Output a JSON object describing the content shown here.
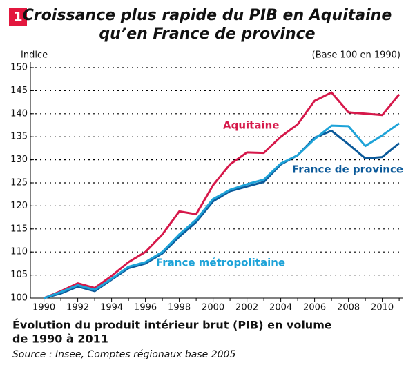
{
  "chart_data": {
    "type": "line",
    "badge": "1",
    "title": [
      "Croissance plus rapide du PIB en Aquitaine",
      "qu’en France de province"
    ],
    "ylabel": "Indice",
    "note": "(Base 100 en 1990)",
    "caption": [
      "Évolution du produit intérieur brut (PIB) en volume",
      "de 1990 à 2011"
    ],
    "source": "Source : Insee, Comptes régionaux base 2005",
    "x": [
      1990,
      1991,
      1992,
      1993,
      1994,
      1995,
      1996,
      1997,
      1998,
      1999,
      2000,
      2001,
      2002,
      2003,
      2004,
      2005,
      2006,
      2007,
      2008,
      2009,
      2010,
      2011
    ],
    "series": [
      {
        "name": "Aquitaine",
        "color": "#d6184a",
        "values": [
          100,
          101.5,
          103.2,
          102.2,
          104.8,
          107.8,
          110,
          113.8,
          118.8,
          118.2,
          124.5,
          129,
          131.6,
          131.5,
          135,
          137.7,
          142.8,
          144.6,
          140.3,
          140,
          139.7,
          144.2
        ]
      },
      {
        "name": "France métropolitaine",
        "color": "#1ea3d8",
        "values": [
          100,
          101.3,
          102.8,
          101.8,
          104.2,
          106.8,
          107.8,
          110,
          113.8,
          117,
          121.5,
          123.5,
          124.7,
          125.7,
          129.2,
          131,
          134.5,
          137.4,
          137.3,
          133,
          135.3,
          137.9
        ]
      },
      {
        "name": "France de province",
        "color": "#0c5a9a",
        "values": [
          100,
          101,
          102.5,
          101.5,
          104,
          106.5,
          107.5,
          109.7,
          113.3,
          116.5,
          121,
          123.2,
          124.2,
          125.2,
          129,
          131,
          134.8,
          136.3,
          133.4,
          130.3,
          130.6,
          133.6
        ]
      }
    ],
    "xlim": [
      1989.2,
      2011.2
    ],
    "xticks": [
      1990,
      1992,
      1994,
      1996,
      1998,
      2000,
      2002,
      2004,
      2006,
      2008,
      2010
    ],
    "ylim": [
      100,
      150
    ],
    "yticks": [
      100,
      105,
      110,
      115,
      120,
      125,
      130,
      135,
      140,
      145,
      150
    ],
    "grid": true
  }
}
